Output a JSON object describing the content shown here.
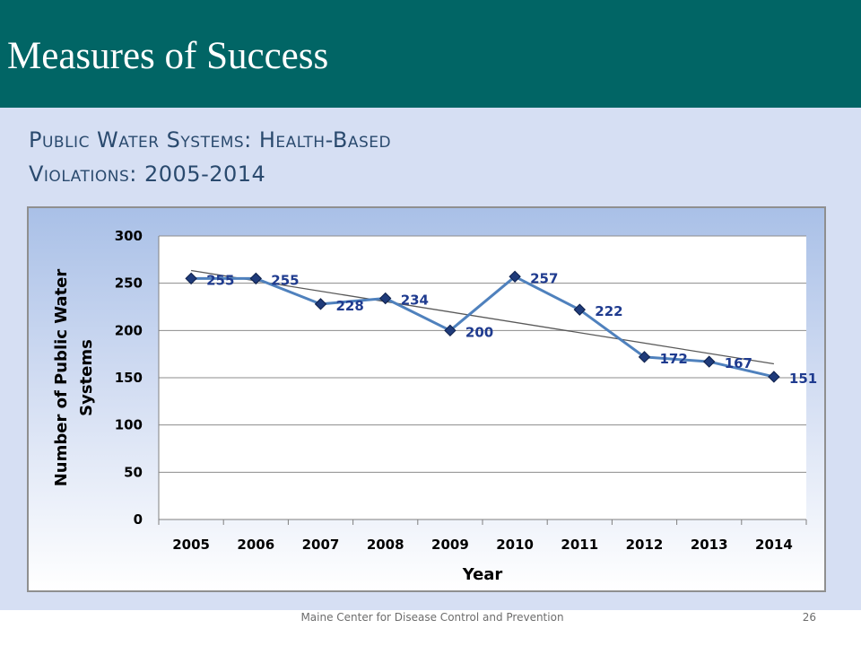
{
  "header": {
    "title": "Measures of Success"
  },
  "slide": {
    "subtitle_line1": "Public Water Systems:  Health-Based",
    "subtitle_line2": "Violations: 2005-2014"
  },
  "footer": {
    "text": "Maine Center for Disease Control and Prevention",
    "page": "26"
  },
  "colors": {
    "header": "#016565",
    "content_bg": "#d6dff3",
    "series_line": "#4f81bd",
    "marker": "#1f3b7a",
    "data_label": "#1f3b8f",
    "trendline": "#595959"
  },
  "chart_data": {
    "type": "line",
    "title": "",
    "xlabel": "Year",
    "ylabel": "Number of Public Water Systems",
    "ylabel_lines": [
      "Number of Public Water",
      "Systems"
    ],
    "categories": [
      "2005",
      "2006",
      "2007",
      "2008",
      "2009",
      "2010",
      "2011",
      "2012",
      "2013",
      "2014"
    ],
    "series": [
      {
        "values": [
          255,
          255,
          228,
          234,
          200,
          257,
          222,
          172,
          167,
          151
        ]
      }
    ],
    "trendline": {
      "type": "linear"
    },
    "ylim": [
      0,
      300
    ],
    "yticks": [
      "0",
      "50",
      "100",
      "150",
      "200",
      "250",
      "300"
    ],
    "grid": true,
    "legend": "none",
    "data_labels": [
      "255",
      "255",
      "228",
      "234",
      "200",
      "257",
      "222",
      "172",
      "167",
      "151"
    ]
  }
}
